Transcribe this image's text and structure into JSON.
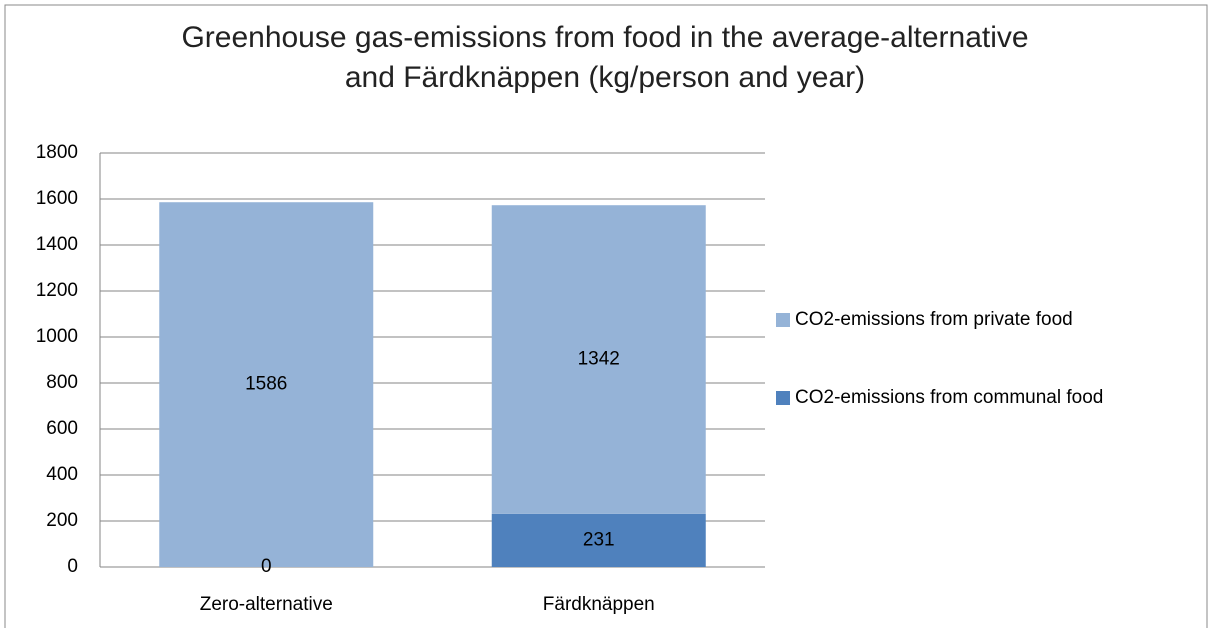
{
  "chart_data": {
    "type": "stacked_bar",
    "title": "Greenhouse gas-emissions from food in the average-alternative and Färdknäppen (kg/person and year)",
    "categories": [
      "Zero-alternative",
      "Färdknäppen"
    ],
    "series": [
      {
        "name": "CO2-emissions from communal food",
        "color": "#4f81bd",
        "values": [
          0,
          231
        ]
      },
      {
        "name": "CO2-emissions from private food",
        "color": "#95b3d7",
        "values": [
          1586,
          1342
        ]
      }
    ],
    "ylim": [
      0,
      1800
    ],
    "yticks": [
      0,
      200,
      400,
      600,
      800,
      1000,
      1200,
      1400,
      1600,
      1800
    ],
    "grid": true,
    "legend": "right"
  }
}
